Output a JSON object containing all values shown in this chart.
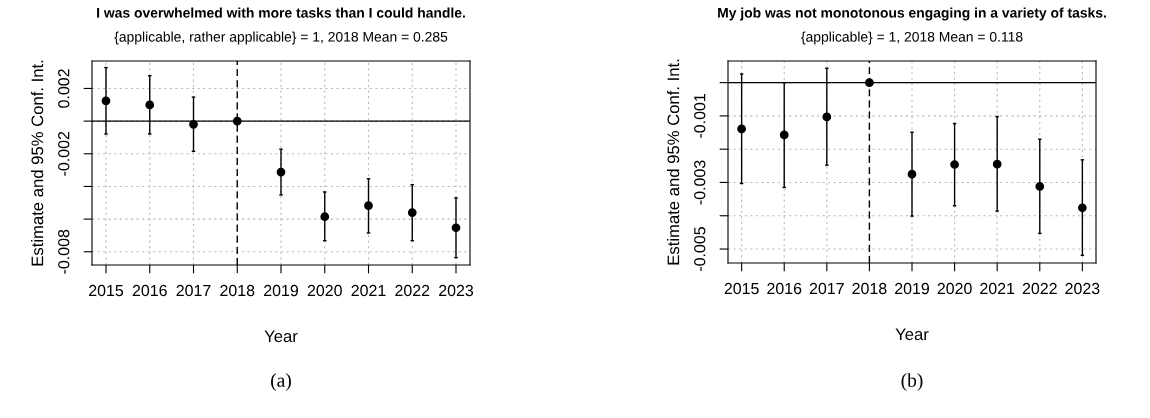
{
  "chart_data": [
    {
      "type": "scatter",
      "title": "I was overwhelmed with more tasks than I could handle.",
      "subtitle": "{applicable, rather applicable} = 1, 2018 Mean = 0.285",
      "xlabel": "Year",
      "ylabel": "Estimate and 95% Conf. Int.",
      "x": [
        2015,
        2016,
        2017,
        2018,
        2019,
        2020,
        2021,
        2022,
        2023
      ],
      "series": [
        {
          "color": "#000000",
          "values": [
            0.00124,
            0.00099,
            -0.0002,
            0,
            -0.00312,
            -0.00585,
            -0.00518,
            -0.0056,
            -0.00653
          ],
          "errors": [
            [
              -0.00079,
              0.00328
            ],
            [
              -0.00079,
              0.00278
            ],
            [
              -0.00185,
              0.00147
            ],
            null,
            [
              -0.00452,
              -0.00172
            ],
            [
              -0.00732,
              -0.00434
            ],
            [
              -0.00685,
              -0.00353
            ],
            [
              -0.00732,
              -0.00389
            ],
            [
              -0.00836,
              -0.0047
            ]
          ]
        }
      ],
      "xlim": [
        2014.68,
        2023.32
      ],
      "xticks": [
        2015,
        2016,
        2017,
        2018,
        2019,
        2020,
        2021,
        2022,
        2023
      ],
      "ylim": [
        -0.00881,
        0.00368
      ],
      "yticks": [
        0.002,
        {
          "value": 0,
          "label": null
        },
        -0.002,
        {
          "value": -0.004,
          "label": null
        },
        {
          "value": -0.006,
          "label": null
        },
        -0.008
      ],
      "ref_lines": [
        {
          "axis": "y",
          "value": 0,
          "color": "#000000",
          "line_style": "solid"
        },
        {
          "axis": "x",
          "value": 2018,
          "color": "#000000",
          "line_style": "dashed"
        }
      ],
      "grid": true,
      "marker": "circle",
      "annotations": [
        "(a)"
      ]
    },
    {
      "type": "scatter",
      "title": "My job was not monotonous engaging in a variety of tasks.",
      "subtitle": "{applicable} = 1, 2018 Mean = 0.118",
      "xlabel": "Year",
      "ylabel": "Estimate and 95% Conf. Int.",
      "x": [
        2015,
        2016,
        2017,
        2018,
        2019,
        2020,
        2021,
        2022,
        2023
      ],
      "series": [
        {
          "color": "#000000",
          "values": [
            -0.00139,
            -0.00157,
            -0.00103,
            0,
            -0.00275,
            -0.00246,
            -0.00245,
            -0.00312,
            -0.00376
          ],
          "errors": [
            [
              -0.00303,
              0.00026
            ],
            [
              -0.00315,
              0
            ],
            [
              -0.00248,
              0.00043
            ],
            null,
            [
              -0.00401,
              -0.00149
            ],
            [
              -0.0037,
              -0.00123
            ],
            [
              -0.00386,
              -0.00102
            ],
            [
              -0.00453,
              -0.0017
            ],
            [
              -0.00519,
              -0.00232
            ]
          ]
        }
      ],
      "xlim": [
        2014.68,
        2023.32
      ],
      "xticks": [
        2015,
        2016,
        2017,
        2018,
        2019,
        2020,
        2021,
        2022,
        2023
      ],
      "ylim": [
        -0.00542,
        0.00065
      ],
      "yticks": [
        {
          "value": 0,
          "label": null
        },
        -0.001,
        {
          "value": -0.002,
          "label": null
        },
        -0.003,
        {
          "value": -0.004,
          "label": null
        },
        -0.005
      ],
      "ref_lines": [
        {
          "axis": "y",
          "value": 0,
          "color": "#000000",
          "line_style": "solid"
        },
        {
          "axis": "x",
          "value": 2018,
          "color": "#000000",
          "line_style": "dashed"
        }
      ],
      "grid": true,
      "marker": "circle",
      "annotations": [
        "(b)"
      ]
    }
  ]
}
